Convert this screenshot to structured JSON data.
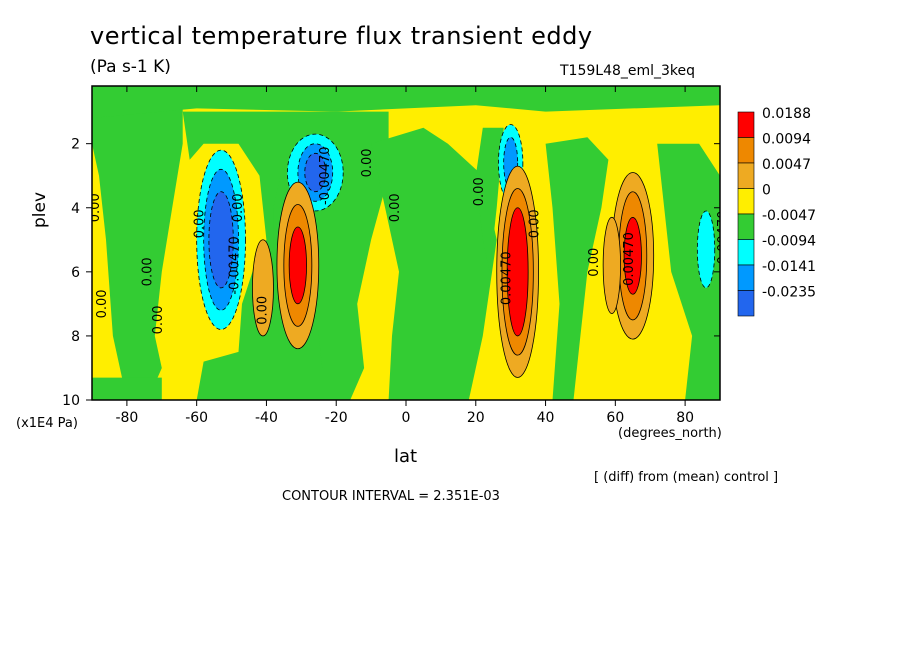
{
  "header": {
    "title": "vertical temperature flux transient eddy",
    "units": "(Pa s-1 K)",
    "run_name": "T159L48_eml_3keq"
  },
  "footer": {
    "diff_note": "[ (diff) from (mean) control ]",
    "contour_interval": "CONTOUR INTERVAL = 2.351E-03"
  },
  "chart_data": {
    "type": "heatmap",
    "title": "vertical temperature flux transient eddy",
    "xlabel": "lat",
    "x_unit": "(degrees_north)",
    "ylabel": "plev",
    "y_unit": "(x1E4 Pa)",
    "xlim": [
      -90,
      90
    ],
    "ylim": [
      10,
      0.2
    ],
    "x_ticks": [
      -80,
      -60,
      -40,
      -20,
      0,
      20,
      40,
      60,
      80
    ],
    "y_ticks": [
      2,
      4,
      6,
      8,
      10
    ],
    "contour_interval": 0.002351,
    "colorbar": {
      "levels": [
        "0.0188",
        "0.0094",
        "0.0047",
        "0",
        "-0.0047",
        "-0.0094",
        "-0.0141",
        "-0.0235"
      ],
      "colors": [
        "#ff0000",
        "#ee8800",
        "#eeaa22",
        "#ffee00",
        "#33cc33",
        "#00ffff",
        "#0099ff",
        "#2266ee"
      ]
    },
    "contour_labels": [
      "0.00",
      "0.00",
      "0.00",
      "0.00",
      "0.00",
      "0.00",
      "0.00",
      "0.00",
      "0.00",
      "0.00",
      "0.00",
      "0.00",
      "-0.00470",
      "-0.00470",
      "0.00470",
      "0.00470",
      "-0.00470"
    ],
    "features": [
      {
        "lat": -53,
        "plev": 5.0,
        "value": -0.0141,
        "desc": "negative core"
      },
      {
        "lat": -32,
        "plev": 5.8,
        "value": 0.0188,
        "desc": "positive core"
      },
      {
        "lat": -26,
        "plev": 2.8,
        "value": -0.0141,
        "desc": "negative core"
      },
      {
        "lat": 32,
        "plev": 6.2,
        "value": 0.0188,
        "desc": "positive core"
      },
      {
        "lat": 30,
        "plev": 2.5,
        "value": -0.0094,
        "desc": "negative core"
      },
      {
        "lat": 65,
        "plev": 5.5,
        "value": 0.0188,
        "desc": "positive core"
      },
      {
        "lat": 85,
        "plev": 5.3,
        "value": -0.0094,
        "desc": "negative core"
      }
    ]
  }
}
